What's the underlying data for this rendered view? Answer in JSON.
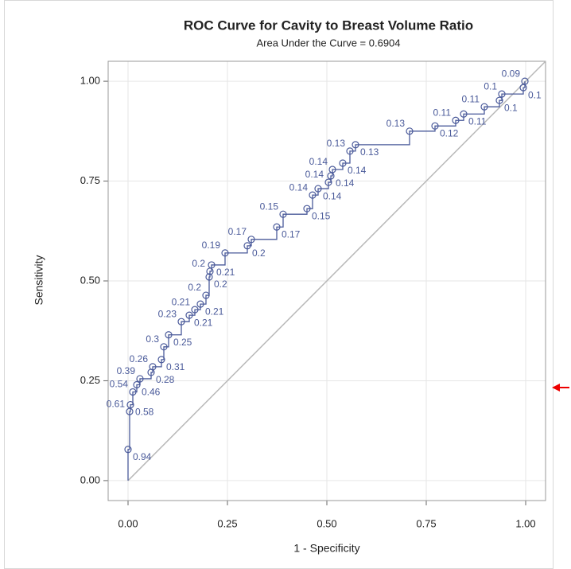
{
  "chart_data": {
    "type": "roc",
    "title": "ROC Curve for Cavity to Breast Volume Ratio",
    "subtitle": "Area Under the Curve = 0.6904",
    "x_label": "1 - Specificity",
    "y_label": "Sensitivity",
    "xlim": [
      -0.05,
      1.05
    ],
    "ylim": [
      -0.05,
      1.05
    ],
    "xticks": [
      {
        "value": 0,
        "label": "0.00"
      },
      {
        "value": 0.25,
        "label": "0.25"
      },
      {
        "value": 0.5,
        "label": "0.50"
      },
      {
        "value": 0.75,
        "label": "0.75"
      },
      {
        "value": 1,
        "label": "1.00"
      }
    ],
    "yticks": [
      {
        "value": 0,
        "label": "0.00"
      },
      {
        "value": 0.25,
        "label": "0.25"
      },
      {
        "value": 0.5,
        "label": "0.50"
      },
      {
        "value": 0.75,
        "label": "0.75"
      },
      {
        "value": 1,
        "label": "1.00"
      }
    ],
    "grid": true,
    "color": "#4a5a9a",
    "reference_color": "#b8b8b8",
    "x": [
      0,
      0,
      0.004,
      0.006,
      0.012,
      0.022,
      0.03,
      0.058,
      0.062,
      0.084,
      0.09,
      0.102,
      0.134,
      0.154,
      0.168,
      0.182,
      0.196,
      0.204,
      0.206,
      0.21,
      0.244,
      0.3,
      0.31,
      0.374,
      0.39,
      0.45,
      0.464,
      0.478,
      0.504,
      0.51,
      0.514,
      0.54,
      0.558,
      0.572,
      0.708,
      0.772,
      0.824,
      0.844,
      0.896,
      0.934,
      0.94,
      0.994,
      0.998
    ],
    "values": [
      0,
      0.078,
      0.173,
      0.19,
      0.222,
      0.24,
      0.255,
      0.271,
      0.285,
      0.303,
      0.335,
      0.365,
      0.398,
      0.414,
      0.428,
      0.442,
      0.464,
      0.51,
      0.524,
      0.54,
      0.57,
      0.588,
      0.604,
      0.635,
      0.667,
      0.681,
      0.715,
      0.731,
      0.747,
      0.763,
      0.779,
      0.795,
      0.825,
      0.841,
      0.875,
      0.888,
      0.902,
      0.918,
      0.936,
      0.952,
      0.968,
      0.984,
      1.0
    ],
    "point_labels": [
      null,
      "0.94",
      "0.61",
      "0.58",
      "0.54",
      "0.46",
      "0.39",
      "0.28",
      "0.26",
      "0.31",
      "0.3",
      "0.25",
      "0.23",
      "0.21",
      "0.21",
      "0.21",
      "0.2",
      "0.2",
      "0.2",
      "0.21",
      "0.19",
      "0.2",
      "0.17",
      "0.17",
      "0.15",
      "0.15",
      "0.14",
      "0.14",
      "0.14",
      "0.14",
      "0.14",
      "0.14",
      "0.13",
      "0.13",
      "0.13",
      "0.12",
      "0.11",
      "0.11",
      "0.11",
      "0.1",
      "0.1",
      "0.1",
      "0.09"
    ]
  }
}
